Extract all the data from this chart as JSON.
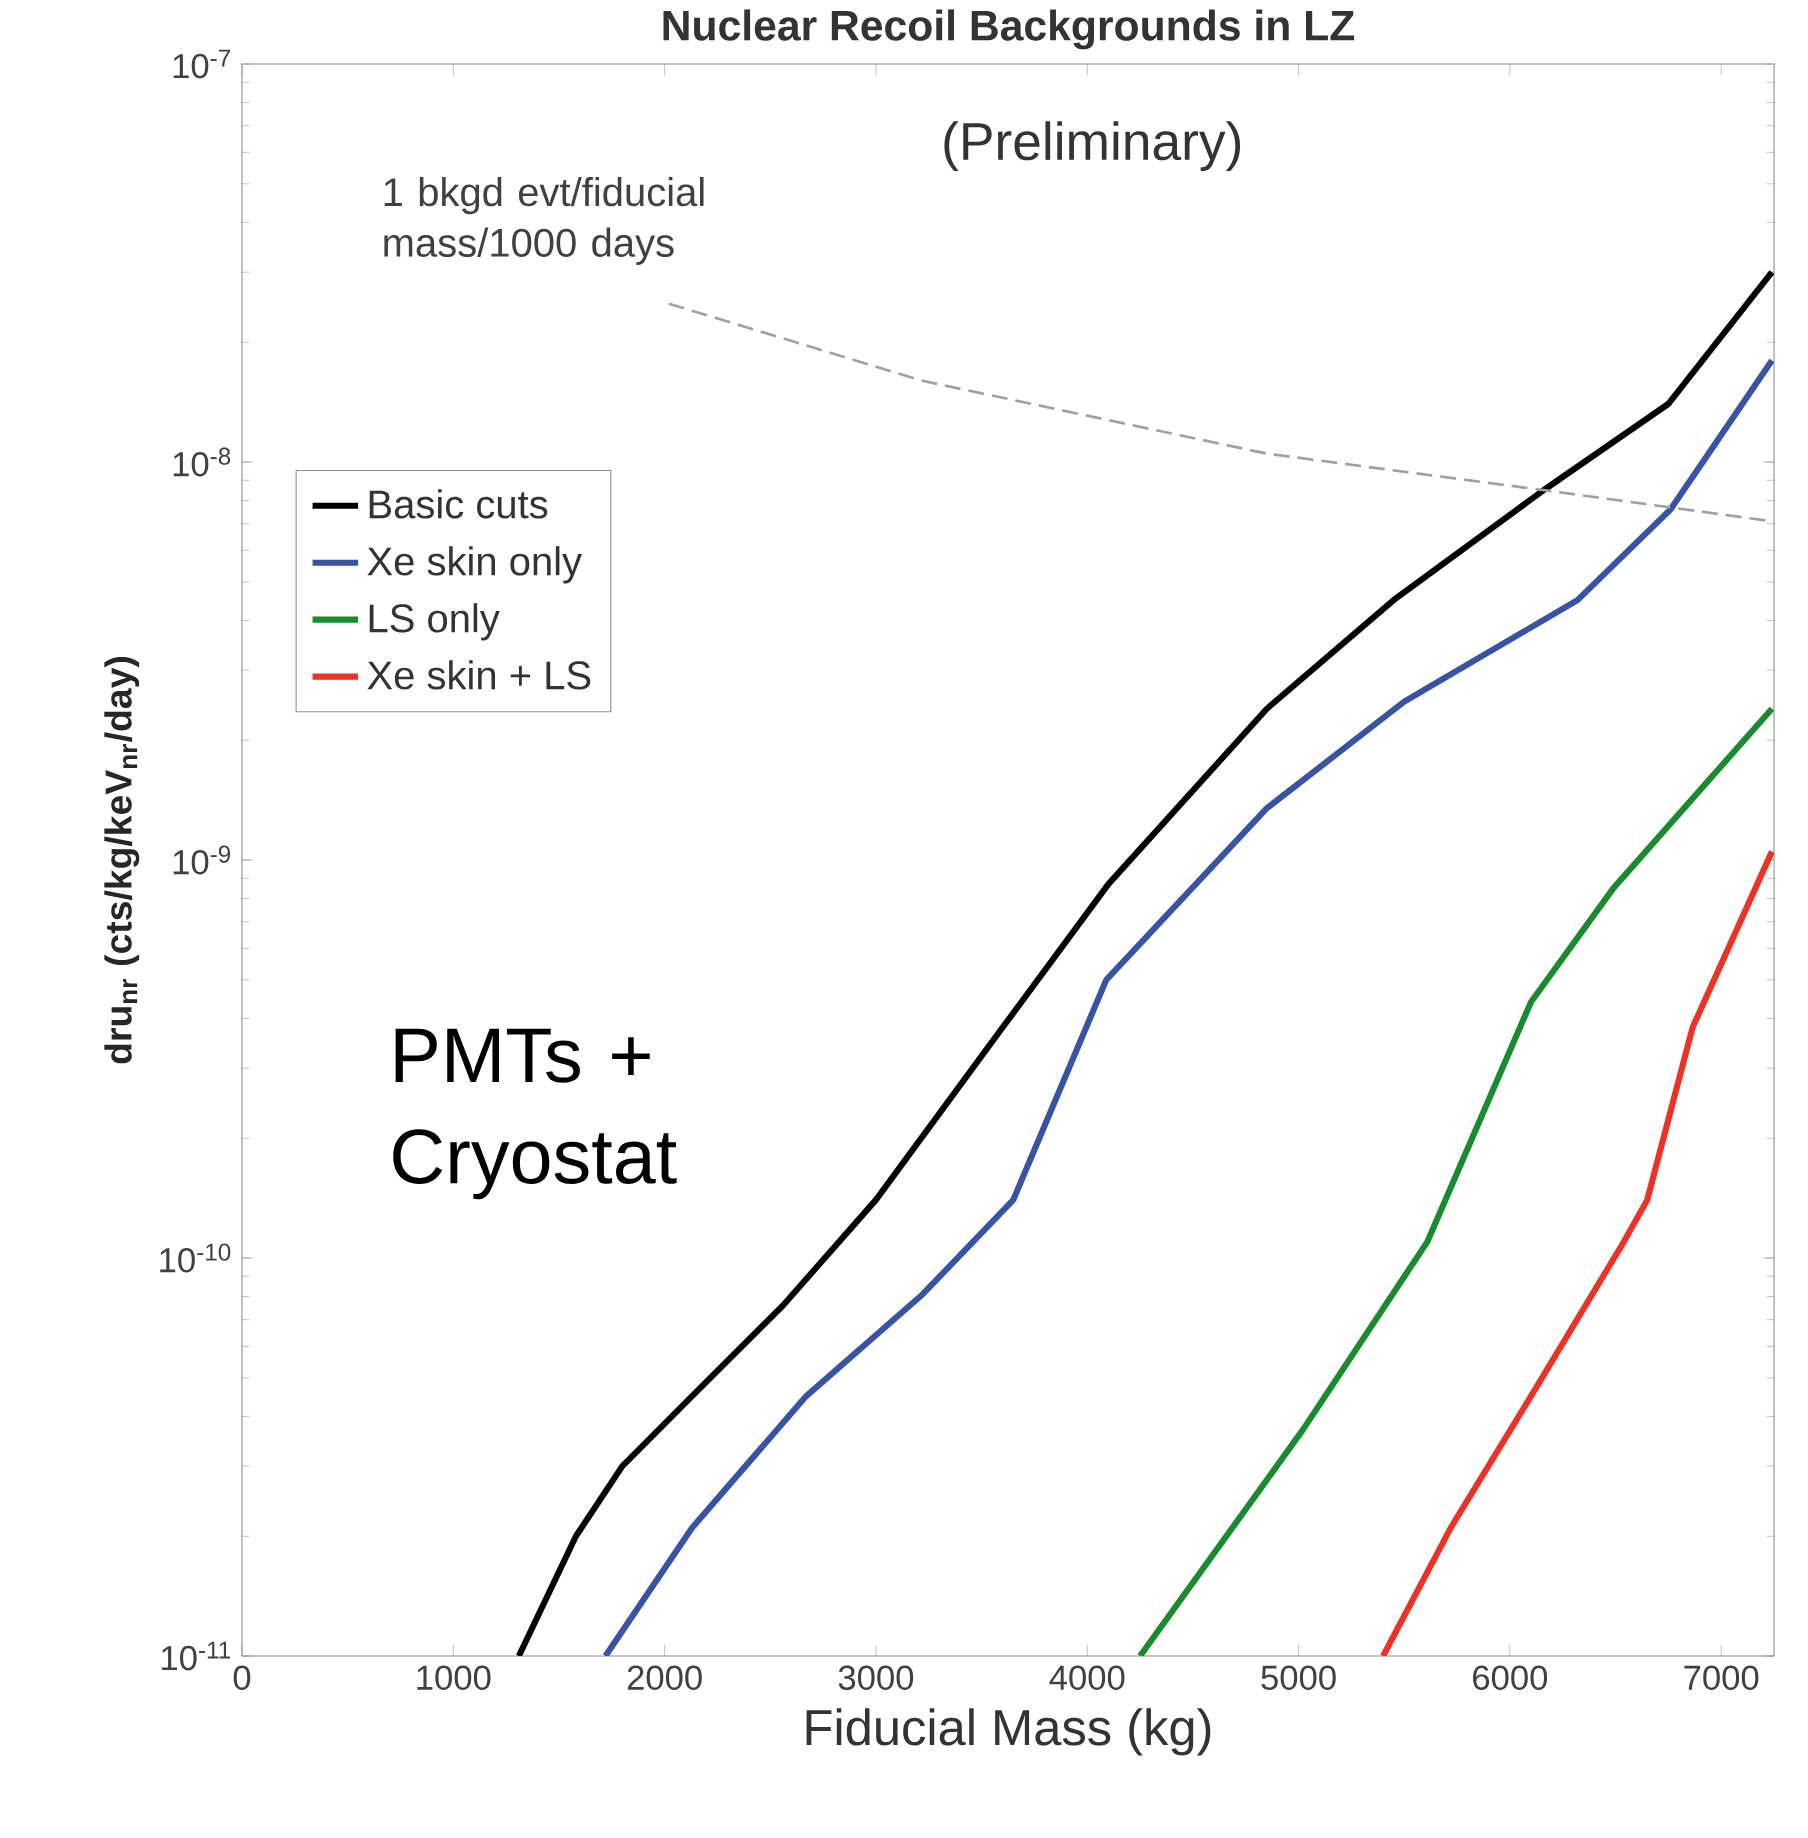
{
  "chart_data": {
    "type": "line",
    "title": "Nuclear Recoil Backgrounds in LZ",
    "xlabel": "Fiducial Mass (kg)",
    "ylabel": "dru$_{nr}$ (cts/kg/keV$_{nr}$/day)",
    "log": "y",
    "xlim": [
      0,
      7250
    ],
    "ylim": [
      1e-11,
      1e-07
    ],
    "xticks": [
      0,
      1000,
      2000,
      3000,
      4000,
      5000,
      6000,
      7000
    ],
    "yticks": [
      {
        "value": 1e-11,
        "label": "10$^{-11}$"
      },
      {
        "value": 1e-10,
        "label": "10$^{-10}$"
      },
      {
        "value": 1e-09,
        "label": "10$^{-9}$"
      },
      {
        "value": 1e-08,
        "label": "10$^{-8}$"
      },
      {
        "value": 1e-07,
        "label": "10$^{-7}$"
      }
    ],
    "legend": "left",
    "marker": "none",
    "line_style": "solid",
    "series": [
      {
        "name": "Basic cuts",
        "color": "#000000",
        "x": [
          1310,
          1580,
          1800,
          2130,
          2560,
          3000,
          3600,
          4100,
          4850,
          5450,
          6160,
          6750,
          7240
        ],
        "values": [
          1e-11,
          2e-11,
          3e-11,
          4.5e-11,
          7.6e-11,
          1.4e-10,
          3.8e-10,
          8.7e-10,
          2.4e-09,
          4.5e-09,
          8.5e-09,
          1.4e-08,
          3e-08
        ]
      },
      {
        "name": "Xe skin only",
        "color": "#3953a4",
        "x": [
          1720,
          2130,
          2670,
          3220,
          3650,
          4090,
          4850,
          5500,
          6320,
          6760,
          7240
        ],
        "values": [
          1e-11,
          2.1e-11,
          4.5e-11,
          8.1e-11,
          1.4e-10,
          5e-10,
          1.35e-09,
          2.5e-09,
          4.5e-09,
          7.6e-09,
          1.8e-08
        ]
      },
      {
        "name": "LS only",
        "color": "#1a8a2e",
        "x": [
          4250,
          5020,
          5610,
          6100,
          6490,
          7240
        ],
        "values": [
          1e-11,
          3.7e-11,
          1.1e-10,
          4.4e-10,
          8.5e-10,
          2.4e-09
        ]
      },
      {
        "name": "Xe skin + LS",
        "color": "#ee3124",
        "x": [
          5400,
          5720,
          6100,
          6540,
          6650,
          6865,
          7240
        ],
        "values": [
          1e-11,
          2.1e-11,
          4.5e-11,
          1.1e-10,
          1.4e-10,
          3.8e-10,
          1.05e-09
        ]
      },
      {
        "color": "#a0a0a0",
        "line_style": "dashed",
        "x": [
          2020,
          3220,
          4850,
          6160,
          7240
        ],
        "values": [
          2.5e-08,
          1.6e-08,
          1.05e-08,
          8.5e-09,
          7.1e-09
        ]
      }
    ],
    "annotations": [
      "(Preliminary)",
      "1 bkgd evt/fiducial mass/1000 days",
      "PMTs + Cryostat"
    ]
  }
}
